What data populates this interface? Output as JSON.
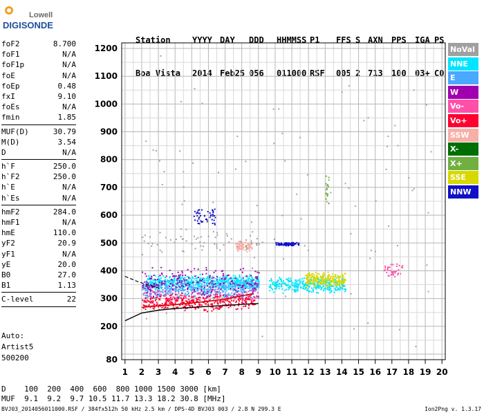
{
  "logo": {
    "line1": "Lowell",
    "line2": "DIGISONDE"
  },
  "header": {
    "labels": [
      "Station",
      "YYYY",
      "DAY",
      "DDD",
      "HHMMSS",
      "P1",
      "FFS",
      "S",
      "AXN",
      "PPS",
      "IGA",
      "PS"
    ],
    "values": [
      "Boa Vista",
      "2014",
      "Feb25",
      "056",
      "011000",
      "RSF",
      "005",
      "2",
      "713",
      "100",
      "03+",
      "C0"
    ]
  },
  "params": {
    "group1": [
      [
        "foF2",
        "8.700"
      ],
      [
        "foF1",
        "N/A"
      ],
      [
        "foF1p",
        "N/A"
      ],
      [
        "foE",
        "N/A"
      ],
      [
        "foEp",
        "0.48"
      ],
      [
        "fxI",
        "9.10"
      ],
      [
        "foEs",
        "N/A"
      ],
      [
        "fmin",
        "1.85"
      ]
    ],
    "group2": [
      [
        "MUF(D)",
        "30.79"
      ],
      [
        "M(D)",
        "3.54"
      ],
      [
        "D",
        "N/A"
      ]
    ],
    "group3": [
      [
        "h`F",
        "250.0"
      ],
      [
        "h`F2",
        "250.0"
      ],
      [
        "h`E",
        "N/A"
      ],
      [
        "h`Es",
        "N/A"
      ]
    ],
    "group4": [
      [
        "hmF2",
        "284.0"
      ],
      [
        "hmF1",
        "N/A"
      ],
      [
        "hmE",
        "110.0"
      ],
      [
        "yF2",
        "20.9"
      ],
      [
        "yF1",
        "N/A"
      ],
      [
        "yE",
        "20.0"
      ],
      [
        "B0",
        "27.0"
      ],
      [
        "B1",
        "1.13"
      ]
    ],
    "group5": [
      [
        "C-level",
        "22"
      ]
    ]
  },
  "auto": {
    "line1": "Auto:",
    "line2": "Artist5",
    "line3": "500200"
  },
  "muf_table": {
    "d_label": "D",
    "d_values": [
      "100",
      "200",
      "400",
      "600",
      "800",
      "1000",
      "1500",
      "3000"
    ],
    "d_unit": "[km]",
    "muf_label": "MUF",
    "muf_values": [
      "9.1",
      "9.2",
      "9.7",
      "10.5",
      "11.7",
      "13.3",
      "18.2",
      "30.8"
    ],
    "muf_unit": "[MHz]"
  },
  "footer": "BVJ03_2014056011000.RSF / 384fx512h 50 kHz 2.5 km / DPS-4D BVJ03 003 / 2.8 N 299.3 E",
  "version": "Ion2Png v. 1.3.17",
  "legend": [
    {
      "label": "NoVal",
      "color": "#a0a0a0"
    },
    {
      "label": "NNE",
      "color": "#00e5ff"
    },
    {
      "label": "E",
      "color": "#4aa8ff"
    },
    {
      "label": "W",
      "color": "#a000b0"
    },
    {
      "label": "Vo-",
      "color": "#ff4fa8"
    },
    {
      "label": "Vo+",
      "color": "#ff0030"
    },
    {
      "label": "SSW",
      "color": "#f7b0a8"
    },
    {
      "label": "X-",
      "color": "#006e00"
    },
    {
      "label": "X+",
      "color": "#70b040"
    },
    {
      "label": "SSE",
      "color": "#d8d800"
    },
    {
      "label": "NNW",
      "color": "#1010c8"
    }
  ],
  "chart_data": {
    "type": "scatter",
    "x_ticks": [
      1,
      2,
      3,
      4,
      5,
      6,
      7,
      8,
      9,
      10,
      11,
      12,
      13,
      14,
      15,
      16,
      17,
      18,
      19,
      20
    ],
    "y_ticks": [
      80,
      200,
      300,
      400,
      500,
      600,
      700,
      800,
      900,
      1000,
      1100,
      1200
    ],
    "xlim": [
      0.8,
      20.2
    ],
    "ylim": [
      80,
      1220
    ],
    "grid": true,
    "clusters": [
      {
        "color_key": "NNE",
        "x": [
          2.2,
          9.0
        ],
        "y": [
          330,
          390
        ],
        "n": 700
      },
      {
        "color_key": "NNE",
        "x": [
          9.6,
          14.2
        ],
        "y": [
          320,
          380
        ],
        "n": 350
      },
      {
        "color_key": "E",
        "x": [
          2.0,
          9.0
        ],
        "y": [
          300,
          370
        ],
        "n": 400
      },
      {
        "color_key": "SSE",
        "x": [
          11.8,
          14.2
        ],
        "y": [
          340,
          400
        ],
        "n": 220
      },
      {
        "color_key": "W",
        "x": [
          2.0,
          9.0
        ],
        "y": [
          290,
          420
        ],
        "n": 260
      },
      {
        "color_key": "Vo-",
        "x": [
          2.0,
          9.0
        ],
        "y": [
          280,
          340
        ],
        "n": 120
      },
      {
        "color_key": "Vo+",
        "x": [
          2.0,
          8.8
        ],
        "y": [
          255,
          320
        ],
        "n": 320
      },
      {
        "color_key": "SSW",
        "x": [
          7.6,
          8.6
        ],
        "y": [
          470,
          510
        ],
        "n": 80
      },
      {
        "color_key": "NNW",
        "x": [
          10.0,
          11.4
        ],
        "y": [
          490,
          505
        ],
        "n": 80
      },
      {
        "color_key": "NNW",
        "x": [
          5.0,
          6.4
        ],
        "y": [
          560,
          630
        ],
        "n": 45
      },
      {
        "color_key": "Vo-",
        "x": [
          16.5,
          17.6
        ],
        "y": [
          380,
          430
        ],
        "n": 40
      },
      {
        "color_key": "X+",
        "x": [
          13.0,
          13.2
        ],
        "y": [
          620,
          750
        ],
        "n": 20
      },
      {
        "color_key": "NoVal",
        "x": [
          2.0,
          9.0
        ],
        "y": [
          460,
          560
        ],
        "n": 60
      },
      {
        "color_key": "NoVal",
        "x": [
          2.0,
          19.5
        ],
        "y": [
          100,
          1190
        ],
        "n": 90
      }
    ],
    "profile_curve": {
      "x": [
        1.0,
        2.0,
        3.0,
        4.0,
        5.0,
        6.0,
        7.0,
        8.0,
        9.0
      ],
      "y": [
        220,
        248,
        258,
        264,
        268,
        272,
        275,
        279,
        282
      ]
    },
    "red_trace": {
      "x": [
        2.0,
        3.0,
        4.0,
        5.0,
        6.0,
        7.0,
        8.0,
        8.7
      ],
      "y": [
        268,
        274,
        278,
        284,
        290,
        298,
        310,
        318
      ]
    }
  }
}
